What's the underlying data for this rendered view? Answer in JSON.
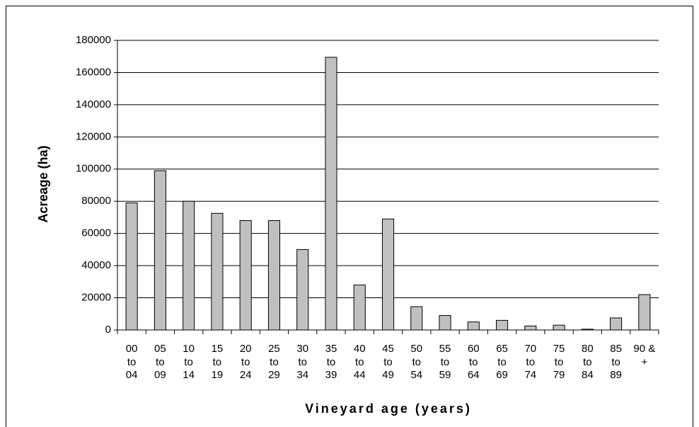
{
  "chart_data": {
    "type": "bar",
    "x_label": "Vineyard age (years)",
    "y_label": "Acreage (ha)",
    "categories": [
      "00\nto\n04",
      "05\nto\n09",
      "10\nto\n14",
      "15\nto\n19",
      "20\nto\n24",
      "25\nto\n29",
      "30\nto\n34",
      "35\nto\n39",
      "40\nto\n44",
      "45\nto\n49",
      "50\nto\n54",
      "55\nto\n59",
      "60\nto\n64",
      "65\nto\n69",
      "70\nto\n74",
      "75\nto\n79",
      "80\nto\n84",
      "85\nto\n89",
      "90 &\n+"
    ],
    "values": [
      79000,
      99000,
      80000,
      72500,
      68000,
      68000,
      50000,
      169500,
      28000,
      69000,
      14500,
      9000,
      5000,
      6000,
      2500,
      3000,
      500,
      7500,
      22000
    ],
    "color": "#c0c0c0",
    "ylim": [
      0,
      180000
    ],
    "yticks": [
      0,
      20000,
      40000,
      60000,
      80000,
      100000,
      120000,
      140000,
      160000,
      180000
    ],
    "grid": true
  }
}
